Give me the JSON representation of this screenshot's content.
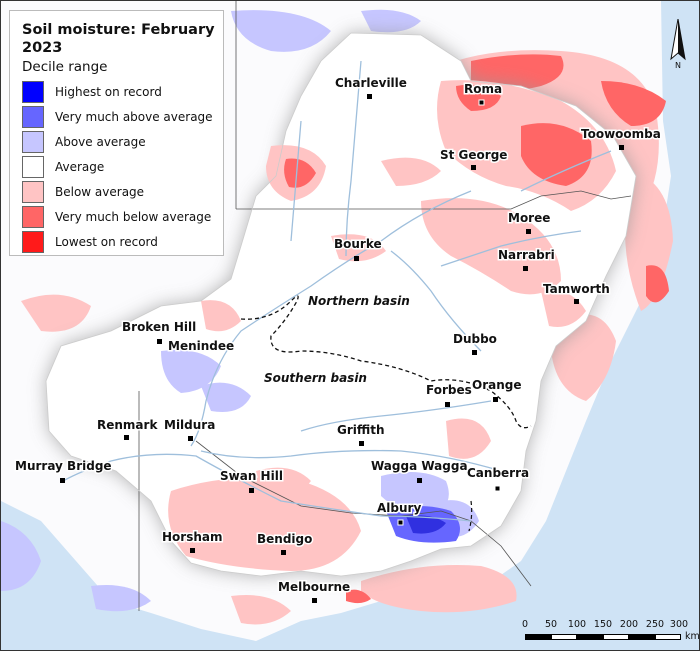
{
  "legend": {
    "title": "Soil moisture: February 2023",
    "subtitle": "Decile range",
    "items": [
      {
        "label": "Highest on record",
        "color": "#0000ff"
      },
      {
        "label": "Very much above average",
        "color": "#6666ff"
      },
      {
        "label": "Above average",
        "color": "#c6c6ff"
      },
      {
        "label": "Average",
        "color": "#ffffff"
      },
      {
        "label": "Below average",
        "color": "#ffc4c4"
      },
      {
        "label": "Very much below average",
        "color": "#ff6666"
      },
      {
        "label": "Lowest on record",
        "color": "#ff1a1a"
      }
    ]
  },
  "places": {
    "charleville": "Charleville",
    "roma": "Roma",
    "toowoomba": "Toowoomba",
    "st_george": "St George",
    "moree": "Moree",
    "bourke": "Bourke",
    "narrabri": "Narrabri",
    "tamworth": "Tamworth",
    "broken_hill": "Broken Hill",
    "menindee": "Menindee",
    "dubbo": "Dubbo",
    "forbes": "Forbes",
    "orange": "Orange",
    "renmark": "Renmark",
    "mildura": "Mildura",
    "griffith": "Griffith",
    "murray_bridge": "Murray Bridge",
    "swan_hill": "Swan Hill",
    "wagga_wagga": "Wagga Wagga",
    "canberra": "Canberra",
    "albury": "Albury",
    "horsham": "Horsham",
    "bendigo": "Bendigo",
    "melbourne": "Melbourne"
  },
  "basins": {
    "northern": "Northern basin",
    "southern": "Southern basin"
  },
  "north_arrow": {
    "letter": "N"
  },
  "scale_bar": {
    "ticks": [
      "0",
      "50",
      "100",
      "150",
      "200",
      "250",
      "300"
    ],
    "unit": "km"
  },
  "colors": {
    "ocean": "#cfe3f5",
    "land": "#ffffff",
    "river": "#9fbfdc"
  }
}
